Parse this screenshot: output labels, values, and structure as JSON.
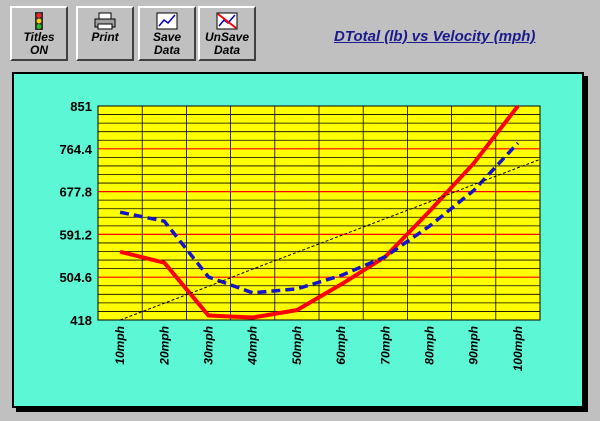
{
  "toolbar": {
    "buttons": [
      {
        "id": "titles",
        "icon": "traffic-light-icon",
        "lines": [
          "Titles",
          "ON"
        ]
      },
      {
        "id": "print",
        "icon": "printer-icon",
        "lines": [
          "Print",
          ""
        ]
      },
      {
        "id": "save",
        "icon": "save-chart-icon",
        "lines": [
          "Save",
          "Data"
        ]
      },
      {
        "id": "unsave",
        "icon": "unsave-chart-icon",
        "lines": [
          "UnSave",
          "Data"
        ]
      }
    ]
  },
  "title": "DTotal  (lb) vs Velocity (mph)",
  "colors": {
    "panel_bg": "#5cf7d4",
    "plot_bg": "#ffff00",
    "grid": "#000000",
    "series_red": "#ff0000",
    "series_blue": "#1414c8",
    "trend": "#000000",
    "title": "#1a1a8c"
  },
  "chart_data": {
    "type": "line",
    "categories": [
      "10mph",
      "20mph",
      "30mph",
      "40mph",
      "50mph",
      "60mph",
      "70mph",
      "80mph",
      "90mph",
      "100mph"
    ],
    "ylim": [
      418,
      851
    ],
    "yticks": [
      "851",
      "764.4",
      "677.8",
      "591.2",
      "504.6",
      "418"
    ],
    "series": [
      {
        "style": "solid",
        "color": "#ff0000",
        "values": [
          556,
          534,
          427,
          423,
          438,
          490,
          546,
          638,
          735,
          851
        ]
      },
      {
        "style": "dashed",
        "color": "#1414c8",
        "values": [
          636,
          618,
          505,
          473,
          481,
          508,
          546,
          608,
          680,
          776
        ]
      },
      {
        "style": "dotted-trend",
        "color": "#000000",
        "values": [
          418,
          452,
          486,
          521,
          555,
          589,
          623,
          657,
          692,
          726
        ]
      }
    ],
    "grid": true
  }
}
